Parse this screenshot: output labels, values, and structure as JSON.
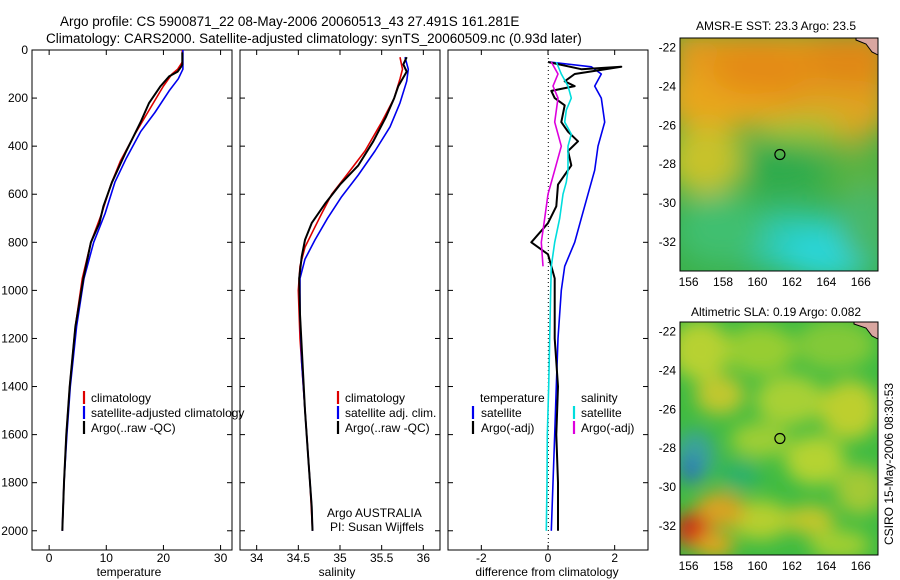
{
  "title": {
    "line1": "Argo profile: CS 5900871_22 08-May-2006 20060513_43 27.491S 161.281E",
    "line2": "Climatology: CARS2000. Satellite-adjusted climatology: synTS_20060509.nc (0.93d later)"
  },
  "side_label": "CSIRO 15-May-2006 08:30:53",
  "colors": {
    "red": "#dd0000",
    "blue": "#0000ee",
    "black": "#000000",
    "cyan": "#00dddd",
    "magenta": "#dd00dd"
  },
  "chart_data": [
    {
      "type": "line",
      "xlabel": "temperature",
      "xlim": [
        -3,
        32
      ],
      "ylim": [
        2080,
        0
      ],
      "xticks": [
        0,
        10,
        20,
        30
      ],
      "yticks": [
        0,
        200,
        400,
        600,
        800,
        1000,
        1200,
        1400,
        1600,
        1800,
        2000
      ],
      "legend": [
        "climatology",
        "satellite-adjusted climatology",
        "Argo(..raw -QC)"
      ],
      "series": [
        {
          "name": "climatology",
          "color": "red",
          "points": [
            [
              23.3,
              0
            ],
            [
              23.3,
              50
            ],
            [
              22.5,
              80
            ],
            [
              21.5,
              100
            ],
            [
              20,
              150
            ],
            [
              17.5,
              250
            ],
            [
              15,
              350
            ],
            [
              12.5,
              460
            ],
            [
              10.8,
              560
            ],
            [
              9.2,
              680
            ],
            [
              7.3,
              800
            ],
            [
              5.8,
              950
            ],
            [
              4.6,
              1150
            ],
            [
              3.6,
              1400
            ],
            [
              3.0,
              1600
            ],
            [
              2.6,
              1800
            ],
            [
              2.3,
              2000
            ]
          ]
        },
        {
          "name": "satellite-adjusted climatology",
          "color": "blue",
          "points": [
            [
              23.4,
              0
            ],
            [
              23.4,
              80
            ],
            [
              22.6,
              120
            ],
            [
              21,
              170
            ],
            [
              18.5,
              260
            ],
            [
              16,
              340
            ],
            [
              13.5,
              450
            ],
            [
              11.5,
              550
            ],
            [
              9.8,
              680
            ],
            [
              7.8,
              800
            ],
            [
              6.1,
              950
            ],
            [
              4.8,
              1150
            ],
            [
              3.7,
              1400
            ],
            [
              3.1,
              1600
            ],
            [
              2.6,
              1800
            ],
            [
              2.3,
              2000
            ]
          ]
        },
        {
          "name": "Argo(..raw -QC)",
          "color": "black",
          "points": [
            [
              23.3,
              10
            ],
            [
              23.3,
              60
            ],
            [
              23.1,
              70
            ],
            [
              22.5,
              90
            ],
            [
              21,
              110
            ],
            [
              19.5,
              150
            ],
            [
              17.5,
              220
            ],
            [
              16,
              300
            ],
            [
              13.5,
              420
            ],
            [
              11,
              550
            ],
            [
              9.5,
              650
            ],
            [
              8.8,
              720
            ],
            [
              7.3,
              800
            ],
            [
              6,
              950
            ],
            [
              4.6,
              1150
            ],
            [
              3.6,
              1400
            ],
            [
              3,
              1600
            ],
            [
              2.6,
              1800
            ],
            [
              2.3,
              2000
            ]
          ]
        }
      ]
    },
    {
      "type": "line",
      "xlabel": "salinity",
      "xlim": [
        33.8,
        36.2
      ],
      "ylim": [
        2080,
        0
      ],
      "xticks": [
        34,
        34.5,
        35,
        35.5,
        36
      ],
      "legend": [
        "climatology",
        "satellite adj. clim.",
        "Argo(..raw -QC)"
      ],
      "annotation": [
        "Argo AUSTRALIA",
        "PI: Susan Wijffels"
      ],
      "series": [
        {
          "name": "climatology",
          "color": "red",
          "points": [
            [
              35.72,
              30
            ],
            [
              35.75,
              80
            ],
            [
              35.72,
              120
            ],
            [
              35.65,
              200
            ],
            [
              35.5,
              300
            ],
            [
              35.3,
              420
            ],
            [
              35.08,
              520
            ],
            [
              34.9,
              600
            ],
            [
              34.78,
              680
            ],
            [
              34.68,
              750
            ],
            [
              34.58,
              820
            ],
            [
              34.52,
              900
            ],
            [
              34.5,
              1000
            ],
            [
              34.52,
              1200
            ],
            [
              34.56,
              1400
            ],
            [
              34.6,
              1600
            ],
            [
              34.64,
              1800
            ],
            [
              34.67,
              2000
            ]
          ]
        },
        {
          "name": "satellite adj. clim.",
          "color": "blue",
          "points": [
            [
              35.78,
              30
            ],
            [
              35.82,
              80
            ],
            [
              35.8,
              130
            ],
            [
              35.72,
              220
            ],
            [
              35.6,
              320
            ],
            [
              35.42,
              420
            ],
            [
              35.22,
              520
            ],
            [
              35.02,
              610
            ],
            [
              34.85,
              700
            ],
            [
              34.7,
              790
            ],
            [
              34.58,
              870
            ],
            [
              34.52,
              950
            ],
            [
              34.52,
              1100
            ],
            [
              34.54,
              1300
            ],
            [
              34.58,
              1500
            ],
            [
              34.62,
              1700
            ],
            [
              34.66,
              1900
            ],
            [
              34.67,
              2000
            ]
          ]
        },
        {
          "name": "Argo(..raw -QC)",
          "color": "black",
          "points": [
            [
              35.8,
              30
            ],
            [
              35.76,
              60
            ],
            [
              35.8,
              90
            ],
            [
              35.7,
              150
            ],
            [
              35.65,
              200
            ],
            [
              35.55,
              280
            ],
            [
              35.4,
              380
            ],
            [
              35.22,
              480
            ],
            [
              35.0,
              560
            ],
            [
              34.82,
              640
            ],
            [
              34.66,
              720
            ],
            [
              34.58,
              790
            ],
            [
              34.54,
              860
            ],
            [
              34.51,
              950
            ],
            [
              34.52,
              1100
            ],
            [
              34.55,
              1300
            ],
            [
              34.58,
              1500
            ],
            [
              34.62,
              1700
            ],
            [
              34.66,
              1900
            ],
            [
              34.67,
              2000
            ]
          ]
        }
      ]
    },
    {
      "type": "line",
      "xlabel": "difference from climatology",
      "xlim": [
        -3,
        3
      ],
      "ylim": [
        2080,
        0
      ],
      "xticks": [
        -2,
        0,
        2
      ],
      "legend_titles": [
        "temperature",
        "salinity"
      ],
      "legend": [
        "satellite",
        "Argo(-adj)",
        "satellite",
        "Argo(-adj)"
      ],
      "series": [
        {
          "name": "satellite",
          "group": "temperature",
          "color": "blue",
          "points": [
            [
              0.05,
              50
            ],
            [
              1.3,
              70
            ],
            [
              1.6,
              100
            ],
            [
              1.4,
              150
            ],
            [
              1.6,
              200
            ],
            [
              1.7,
              300
            ],
            [
              1.5,
              400
            ],
            [
              1.4,
              500
            ],
            [
              1.2,
              600
            ],
            [
              1.0,
              700
            ],
            [
              0.8,
              800
            ],
            [
              0.5,
              900
            ],
            [
              0.4,
              1000
            ],
            [
              0.3,
              1200
            ],
            [
              0.25,
              1400
            ],
            [
              0.2,
              1600
            ],
            [
              0.15,
              1800
            ],
            [
              0.1,
              2000
            ]
          ]
        },
        {
          "name": "Argo(-adj)",
          "group": "temperature",
          "color": "black",
          "points": [
            [
              0.0,
              50
            ],
            [
              1.0,
              80
            ],
            [
              2.2,
              70
            ],
            [
              0.8,
              100
            ],
            [
              0.5,
              130
            ],
            [
              0.8,
              150
            ],
            [
              0.1,
              170
            ],
            [
              0.2,
              200
            ],
            [
              0.5,
              230
            ],
            [
              0.4,
              300
            ],
            [
              0.6,
              340
            ],
            [
              0.9,
              380
            ],
            [
              0.6,
              420
            ],
            [
              0.7,
              480
            ],
            [
              0.3,
              560
            ],
            [
              0.25,
              650
            ],
            [
              0.0,
              720
            ],
            [
              -0.5,
              800
            ],
            [
              0.0,
              850
            ],
            [
              0.2,
              950
            ],
            [
              0.2,
              1200
            ],
            [
              0.3,
              1400
            ],
            [
              0.25,
              1600
            ],
            [
              0.3,
              1800
            ],
            [
              0.3,
              2000
            ]
          ]
        },
        {
          "name": "satellite",
          "group": "salinity",
          "color": "cyan",
          "points": [
            [
              0.25,
              50
            ],
            [
              0.4,
              100
            ],
            [
              0.6,
              150
            ],
            [
              0.7,
              200
            ],
            [
              0.55,
              250
            ],
            [
              0.5,
              300
            ],
            [
              0.7,
              350
            ],
            [
              0.6,
              400
            ],
            [
              0.6,
              500
            ],
            [
              0.55,
              550
            ],
            [
              0.45,
              600
            ],
            [
              0.35,
              700
            ],
            [
              0.2,
              800
            ],
            [
              0.1,
              900
            ],
            [
              0.08,
              1000
            ],
            [
              0.05,
              1200
            ],
            [
              0.02,
              1400
            ],
            [
              -0.02,
              1600
            ],
            [
              -0.03,
              1800
            ],
            [
              -0.05,
              2000
            ]
          ]
        },
        {
          "name": "Argo(-adj)",
          "group": "salinity",
          "color": "magenta",
          "points": [
            [
              0.1,
              50
            ],
            [
              0.3,
              100
            ],
            [
              0.15,
              150
            ],
            [
              0.3,
              200
            ],
            [
              0.2,
              300
            ],
            [
              0.4,
              400
            ],
            [
              0.3,
              450
            ],
            [
              0.2,
              500
            ],
            [
              0.0,
              600
            ],
            [
              -0.1,
              700
            ],
            [
              -0.2,
              800
            ],
            [
              -0.15,
              900
            ]
          ]
        }
      ]
    },
    {
      "type": "heatmap",
      "title": "AMSR-E SST: 23.3 Argo: 23.5",
      "xlim": [
        155.5,
        167
      ],
      "ylim": [
        -33.5,
        -21.5
      ],
      "xticks": [
        156,
        158,
        160,
        162,
        164,
        166
      ],
      "yticks": [
        -22,
        -24,
        -26,
        -28,
        -30,
        -32
      ],
      "marker": [
        161.3,
        -27.5
      ]
    },
    {
      "type": "heatmap",
      "title": "Altimetric SLA: 0.19 Argo: 0.082",
      "xlim": [
        155.5,
        167
      ],
      "ylim": [
        -33.5,
        -21.5
      ],
      "xticks": [
        156,
        158,
        160,
        162,
        164,
        166
      ],
      "yticks": [
        -22,
        -24,
        -26,
        -28,
        -30,
        -32
      ],
      "marker": [
        161.3,
        -27.5
      ]
    }
  ]
}
